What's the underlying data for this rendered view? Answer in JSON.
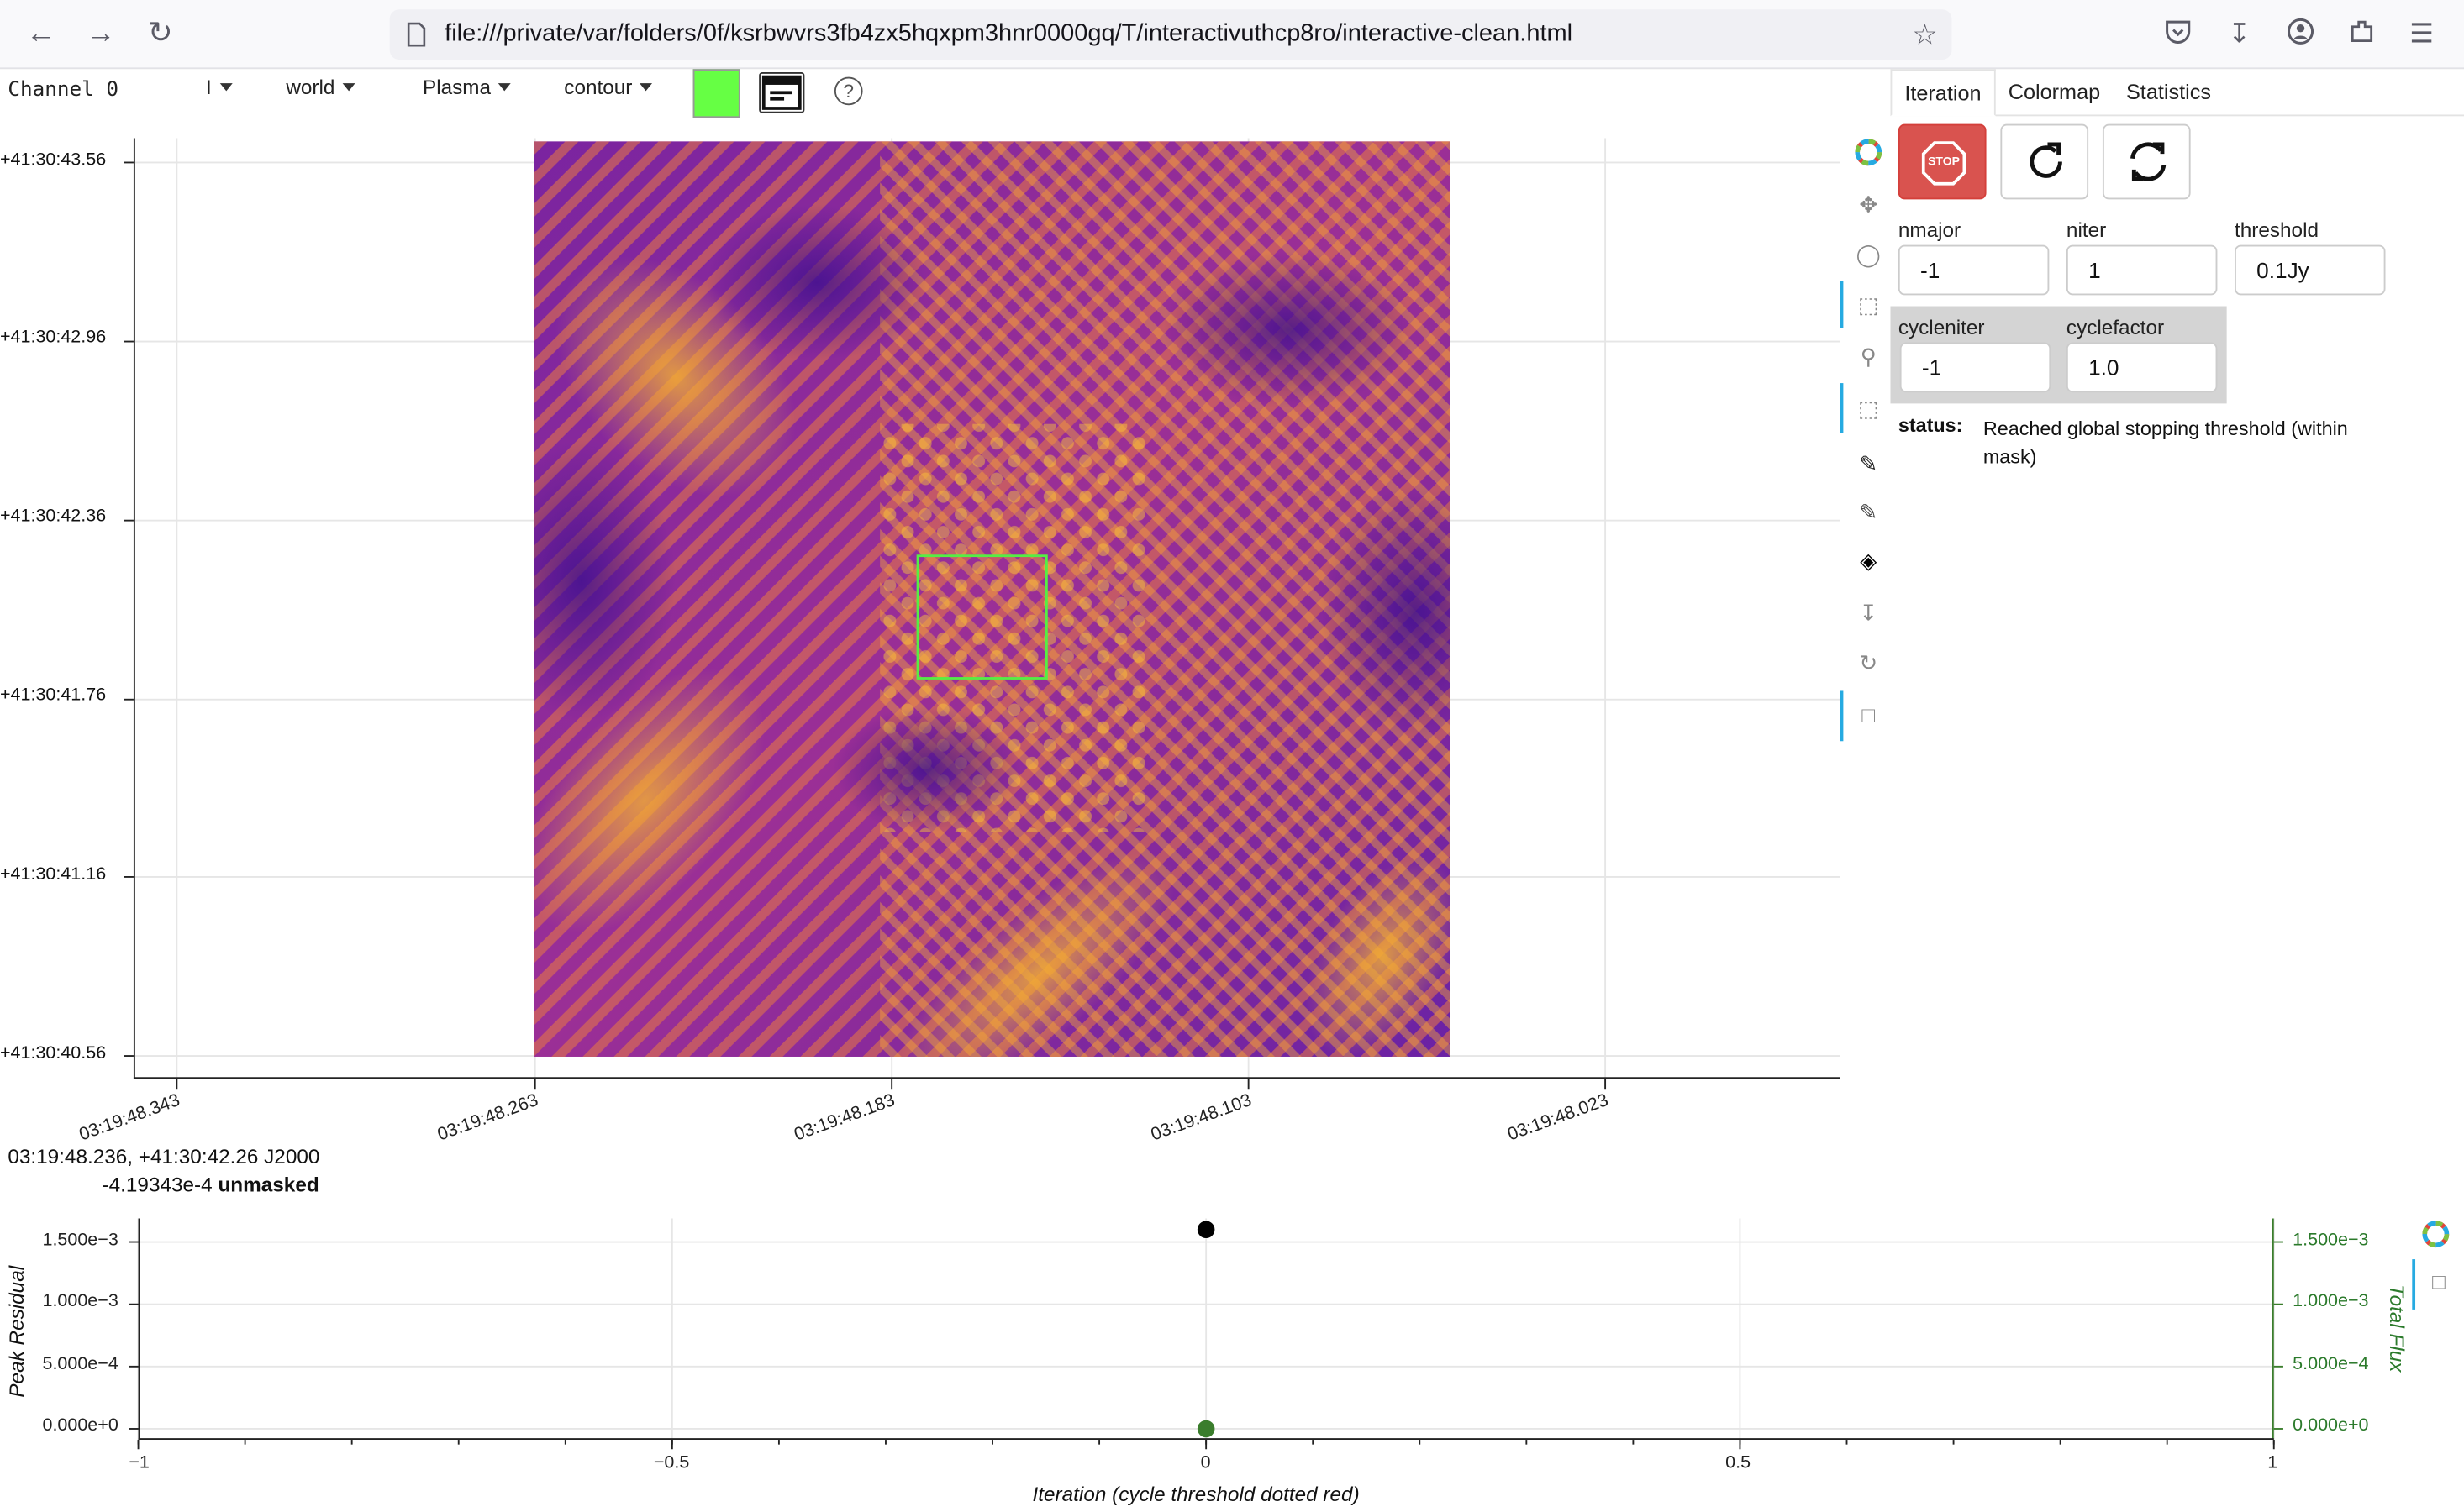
{
  "browser": {
    "url": "file:///private/var/folders/0f/ksrbwvrs3fb4zx5hqxpm3hnr0000gq/T/interactivuthcp8ro/interactive-clean.html"
  },
  "toolbar": {
    "channel_label": "Channel 0",
    "stokes_select": "I",
    "coords_select": "world",
    "colormap_select": "Plasma",
    "contour_select": "contour",
    "mask_color": "#66ff44"
  },
  "image_plot": {
    "y_ticks": [
      "+41:30:43.56",
      "+41:30:42.96",
      "+41:30:42.36",
      "+41:30:41.76",
      "+41:30:41.16",
      "+41:30:40.56"
    ],
    "x_ticks": [
      "03:19:48.343",
      "03:19:48.263",
      "03:19:48.183",
      "03:19:48.103",
      "03:19:48.023"
    ],
    "cursor_position": "03:19:48.236, +41:30:42.26 J2000",
    "cursor_value": "-4.19343e-4",
    "cursor_mask_state": "unmasked"
  },
  "tabs": [
    {
      "label": "Iteration",
      "active": true
    },
    {
      "label": "Colormap",
      "active": false
    },
    {
      "label": "Statistics",
      "active": false
    }
  ],
  "controls": {
    "stop_label": "STOP",
    "nmajor_label": "nmajor",
    "nmajor_value": "-1",
    "niter_label": "niter",
    "niter_value": "1",
    "threshold_label": "threshold",
    "threshold_value": "0.1Jy",
    "cycleniter_label": "cycleniter",
    "cycleniter_value": "-1",
    "cyclefactor_label": "cyclefactor",
    "cyclefactor_value": "1.0",
    "status_label": "status:",
    "status_text": "Reached global stopping threshold (within mask)"
  },
  "chart_data": {
    "type": "scatter",
    "xlabel": "Iteration (cycle threshold dotted red)",
    "ylabel_left": "Peak Residual",
    "ylabel_right": "Total Flux",
    "x_ticks": [
      "−1",
      "−0.5",
      "0",
      "0.5",
      "1"
    ],
    "y_ticks_left": [
      "1.500e−3",
      "1.000e−3",
      "5.000e−4",
      "0.000e+0"
    ],
    "y_ticks_right": [
      "1.500e−3",
      "1.000e−3",
      "5.000e−4",
      "0.000e+0"
    ],
    "xlim": [
      -1,
      1
    ],
    "ylim": [
      0,
      0.0016
    ],
    "series": [
      {
        "name": "Peak Residual",
        "color": "#000000",
        "x": [
          0
        ],
        "y": [
          0.0016
        ]
      },
      {
        "name": "Total Flux",
        "color": "#3a7d2c",
        "x": [
          0
        ],
        "y": [
          0.0
        ]
      }
    ],
    "grid": true
  }
}
